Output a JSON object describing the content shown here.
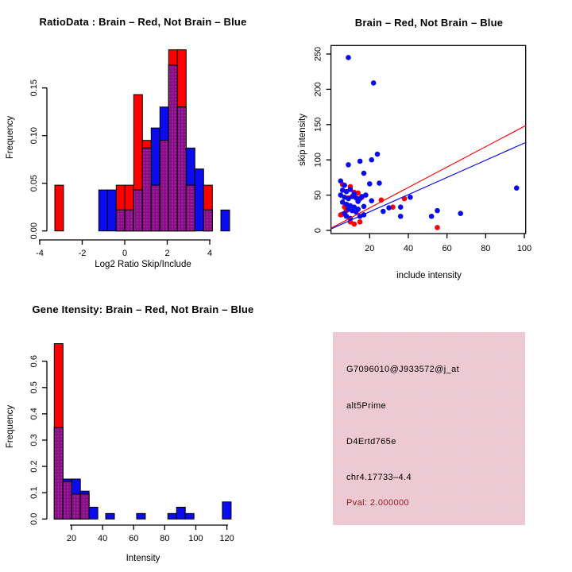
{
  "colors": {
    "red": "#FF0000",
    "blue": "#0B0BEF",
    "purple": "#8A0F8A",
    "purple_dot": "#C04FA8",
    "axis": "#000000",
    "info_box_bg": "#F2C7D0",
    "info_box_dot": "#CBD6E8",
    "pval_red": "#8E1B1B"
  },
  "panels": {
    "ratio_hist": {
      "title": "RatioData : Brain – Red, Not Brain – Blue",
      "xlabel": "Log2 Ratio Skip/Include",
      "ylabel": "Frequency",
      "chart_data": {
        "type": "bar",
        "subtype": "overlaid-histograms",
        "legend": "Brain = red, Not Brain = blue, overlap = purple",
        "xlim": [
          -4.3,
          5.0
        ],
        "ylim": [
          0,
          0.198
        ],
        "xticks": [
          -4,
          -2,
          0,
          2,
          4
        ],
        "xtick_labels": [
          "-4",
          "-2",
          "0",
          "2",
          "4"
        ],
        "yticks": [
          0,
          0.05,
          0.1,
          0.15
        ],
        "ytick_labels": [
          "0.00",
          "0.05",
          "0.10",
          "0.15"
        ],
        "grid": false,
        "bin_width": 0.4112,
        "bars": [
          {
            "x": -3.29,
            "red": 0.048,
            "blue": 0
          },
          {
            "x": -1.222,
            "red": 0,
            "blue": 0.043
          },
          {
            "x": -0.811,
            "red": 0,
            "blue": 0.043
          },
          {
            "x": -0.4,
            "red": 0.048,
            "blue": 0.022
          },
          {
            "x": 0.011,
            "red": 0.048,
            "blue": 0.022
          },
          {
            "x": 0.422,
            "red": 0.143,
            "blue": 0.043
          },
          {
            "x": 0.834,
            "red": 0.095,
            "blue": 0.087
          },
          {
            "x": 1.245,
            "red": 0.048,
            "blue": 0.108
          },
          {
            "x": 1.656,
            "red": 0.095,
            "blue": 0.13
          },
          {
            "x": 2.067,
            "red": 0.19,
            "blue": 0.174
          },
          {
            "x": 2.478,
            "red": 0.19,
            "blue": 0.13
          },
          {
            "x": 2.89,
            "red": 0.048,
            "blue": 0.087
          },
          {
            "x": 3.301,
            "red": 0,
            "blue": 0.065
          },
          {
            "x": 3.712,
            "red": 0.048,
            "blue": 0.022
          },
          {
            "x": 4.524,
            "red": 0,
            "blue": 0.022
          }
        ]
      }
    },
    "scatter": {
      "title": "Brain – Red, Not Brain – Blue",
      "xlabel": "include intensity",
      "ylabel": "skip intensity",
      "chart_data": {
        "type": "scatter",
        "xlim": [
          0,
          100.7
        ],
        "ylim": [
          0,
          262
        ],
        "xticks": [
          20,
          40,
          60,
          80,
          100
        ],
        "xtick_labels": [
          "20",
          "40",
          "60",
          "80",
          "100"
        ],
        "yticks": [
          0,
          50,
          100,
          150,
          200,
          250
        ],
        "ytick_labels": [
          "0",
          "50",
          "100",
          "150",
          "200",
          "250"
        ],
        "grid": false,
        "series": [
          {
            "name": "Brain",
            "color_key": "red",
            "points": [
              [
                6,
                65
              ],
              [
                10,
                62
              ],
              [
                12,
                54
              ],
              [
                14,
                53
              ],
              [
                16,
                47
              ],
              [
                9,
                46
              ],
              [
                26,
                43
              ],
              [
                38,
                45
              ],
              [
                32,
                33
              ],
              [
                7,
                33
              ],
              [
                8,
                28
              ],
              [
                6,
                23
              ],
              [
                5,
                22
              ],
              [
                10,
                12
              ],
              [
                15,
                12
              ],
              [
                12,
                9
              ],
              [
                55,
                4
              ]
            ]
          },
          {
            "name": "Not Brain",
            "color_key": "blue",
            "points": [
              [
                9,
                245
              ],
              [
                22,
                209
              ],
              [
                24,
                108
              ],
              [
                21,
                100
              ],
              [
                15,
                98
              ],
              [
                9,
                93
              ],
              [
                17,
                81
              ],
              [
                5,
                70
              ],
              [
                20,
                66
              ],
              [
                25,
                67
              ],
              [
                7,
                64
              ],
              [
                96,
                60
              ],
              [
                6,
                57
              ],
              [
                8,
                55
              ],
              [
                10,
                58
              ],
              [
                12,
                52
              ],
              [
                5,
                50
              ],
              [
                7,
                47
              ],
              [
                9,
                45
              ],
              [
                11,
                48
              ],
              [
                13,
                46
              ],
              [
                15,
                45
              ],
              [
                16,
                48
              ],
              [
                14,
                41
              ],
              [
                18,
                50
              ],
              [
                41,
                47
              ],
              [
                21,
                42
              ],
              [
                6,
                40
              ],
              [
                8,
                37
              ],
              [
                10,
                35
              ],
              [
                12,
                33
              ],
              [
                17,
                34
              ],
              [
                36,
                33
              ],
              [
                30,
                32
              ],
              [
                27,
                27
              ],
              [
                14,
                30
              ],
              [
                9,
                30
              ],
              [
                11,
                28
              ],
              [
                13,
                26
              ],
              [
                55,
                28
              ],
              [
                7,
                24
              ],
              [
                17,
                22
              ],
              [
                15,
                20
              ],
              [
                36,
                20
              ],
              [
                52,
                20
              ],
              [
                67,
                24
              ],
              [
                10,
                17
              ],
              [
                8,
                20
              ]
            ]
          }
        ],
        "lines": [
          {
            "name": "brain-fit-line",
            "color_key": "red",
            "x1": 0,
            "y1": 3,
            "x2": 101,
            "y2": 149
          },
          {
            "name": "not-brain-fit-line",
            "color_key": "blue",
            "x1": 0,
            "y1": 2,
            "x2": 101,
            "y2": 125
          }
        ]
      }
    },
    "gene_hist": {
      "title": "Gene Itensity: Brain – Red, Not Brain – Blue",
      "xlabel": "Intensity",
      "ylabel": "Frequency",
      "chart_data": {
        "type": "bar",
        "subtype": "overlaid-histograms",
        "legend": "Brain = red, Not Brain = blue, overlap = purple",
        "xlim": [
          5,
          125
        ],
        "ylim": [
          0,
          0.69
        ],
        "xticks": [
          20,
          40,
          60,
          80,
          100,
          120
        ],
        "xtick_labels": [
          "20",
          "40",
          "60",
          "80",
          "100",
          "120"
        ],
        "yticks": [
          0,
          0.1,
          0.2,
          0.3,
          0.4,
          0.5,
          0.6
        ],
        "ytick_labels": [
          "0.0",
          "0.1",
          "0.2",
          "0.3",
          "0.4",
          "0.5",
          "0.6"
        ],
        "grid": false,
        "bin_width": 5.62,
        "bars": [
          {
            "x": 8.9,
            "red": 0.667,
            "blue": 0.348
          },
          {
            "x": 14.5,
            "red": 0.143,
            "blue": 0.152
          },
          {
            "x": 20.1,
            "red": 0.095,
            "blue": 0.152
          },
          {
            "x": 25.7,
            "red": 0.095,
            "blue": 0.106
          },
          {
            "x": 31.3,
            "red": 0,
            "blue": 0.045
          },
          {
            "x": 42.0,
            "red": 0,
            "blue": 0.021
          },
          {
            "x": 61.9,
            "red": 0,
            "blue": 0.021
          },
          {
            "x": 82.0,
            "red": 0,
            "blue": 0.021
          },
          {
            "x": 87.6,
            "red": 0,
            "blue": 0.045
          },
          {
            "x": 93.2,
            "red": 0,
            "blue": 0.021
          },
          {
            "x": 117.1,
            "red": 0,
            "blue": 0.065
          }
        ]
      }
    },
    "info_box": {
      "lines": [
        {
          "text": "G7096010@J933572@j_at",
          "color": "#000000"
        },
        {
          "text": "alt5Prime",
          "color": "#000000"
        },
        {
          "text": "D4Ertd765e",
          "color": "#000000"
        },
        {
          "text": "chr4.17733–4.4",
          "color": "#000000"
        },
        {
          "text": "Pval: 2.000000",
          "color": "#8E1B1B"
        }
      ]
    }
  }
}
